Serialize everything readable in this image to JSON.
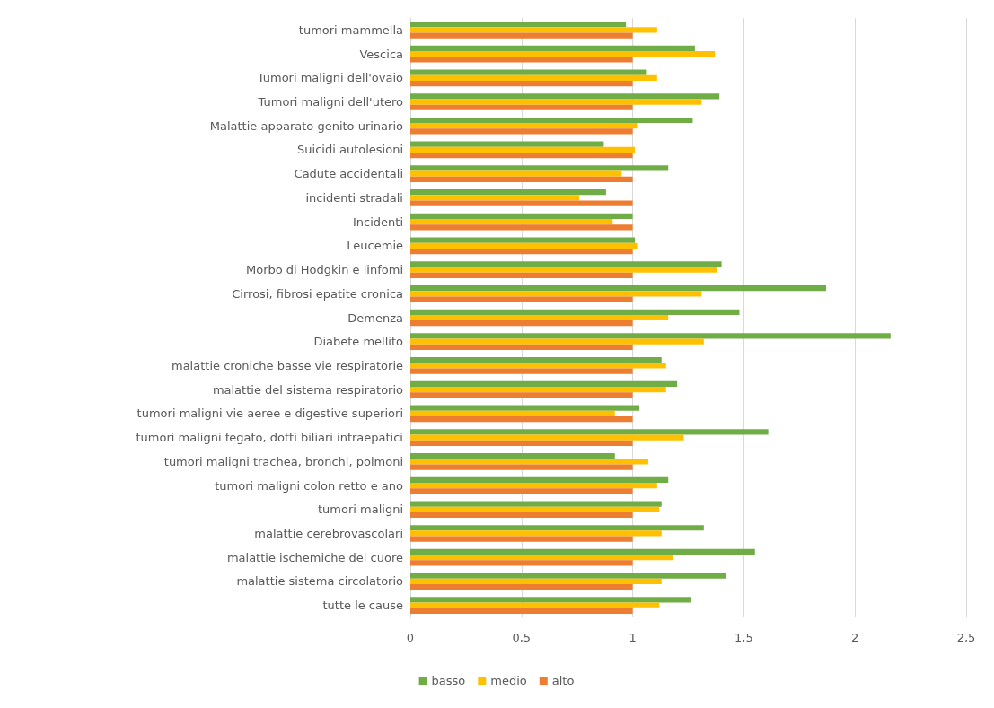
{
  "chart_data": {
    "type": "bar",
    "orientation": "horizontal",
    "categories": [
      "tumori mammella",
      "Vescica",
      "Tumori maligni dell'ovaio",
      "Tumori maligni dell'utero",
      "Malattie apparato genito urinario",
      "Suicidi autolesioni",
      "Cadute accidentali",
      "incidenti stradali",
      "Incidenti",
      "Leucemie",
      "Morbo di Hodgkin e linfomi",
      "Cirrosi, fibrosi epatite cronica",
      "Demenza",
      "Diabete mellito",
      "malattie croniche basse vie respiratorie",
      "malattie del sistema respiratorio",
      "tumori maligni vie aeree e digestive superiori",
      "tumori maligni fegato, dotti biliari intraepatici",
      "tumori maligni trachea, bronchi, polmoni",
      "tumori maligni colon retto e ano",
      "tumori maligni",
      "malattie cerebrovascolari",
      "malattie ischemiche del cuore",
      "malattie sistema circolatorio",
      "tutte le cause"
    ],
    "series": [
      {
        "name": "basso",
        "color": "#70ad47",
        "values": [
          0.97,
          1.28,
          1.06,
          1.39,
          1.27,
          0.87,
          1.16,
          0.88,
          1.0,
          1.01,
          1.4,
          1.87,
          1.48,
          2.16,
          1.13,
          1.2,
          1.03,
          1.61,
          0.92,
          1.16,
          1.13,
          1.32,
          1.55,
          1.42,
          1.26
        ]
      },
      {
        "name": "medio",
        "color": "#ffc000",
        "values": [
          1.11,
          1.37,
          1.11,
          1.31,
          1.02,
          1.01,
          0.95,
          0.76,
          0.91,
          1.02,
          1.38,
          1.31,
          1.16,
          1.32,
          1.15,
          1.15,
          0.92,
          1.23,
          1.07,
          1.11,
          1.12,
          1.13,
          1.18,
          1.13,
          1.12
        ]
      },
      {
        "name": "alto",
        "color": "#ed7d31",
        "values": [
          1,
          1,
          1,
          1,
          1,
          1,
          1,
          1,
          1,
          1,
          1,
          1,
          1,
          1,
          1,
          1,
          1,
          1,
          1,
          1,
          1,
          1,
          1,
          1,
          1
        ]
      }
    ],
    "xlim": [
      0,
      2.5
    ],
    "xticks": [
      0,
      {
        "value": 0.5,
        "label": "0,5"
      },
      1,
      {
        "value": 1.5,
        "label": "1,5"
      },
      2,
      {
        "value": 2.5,
        "label": "2,5"
      }
    ],
    "grid": "x",
    "legend": "bottom"
  }
}
